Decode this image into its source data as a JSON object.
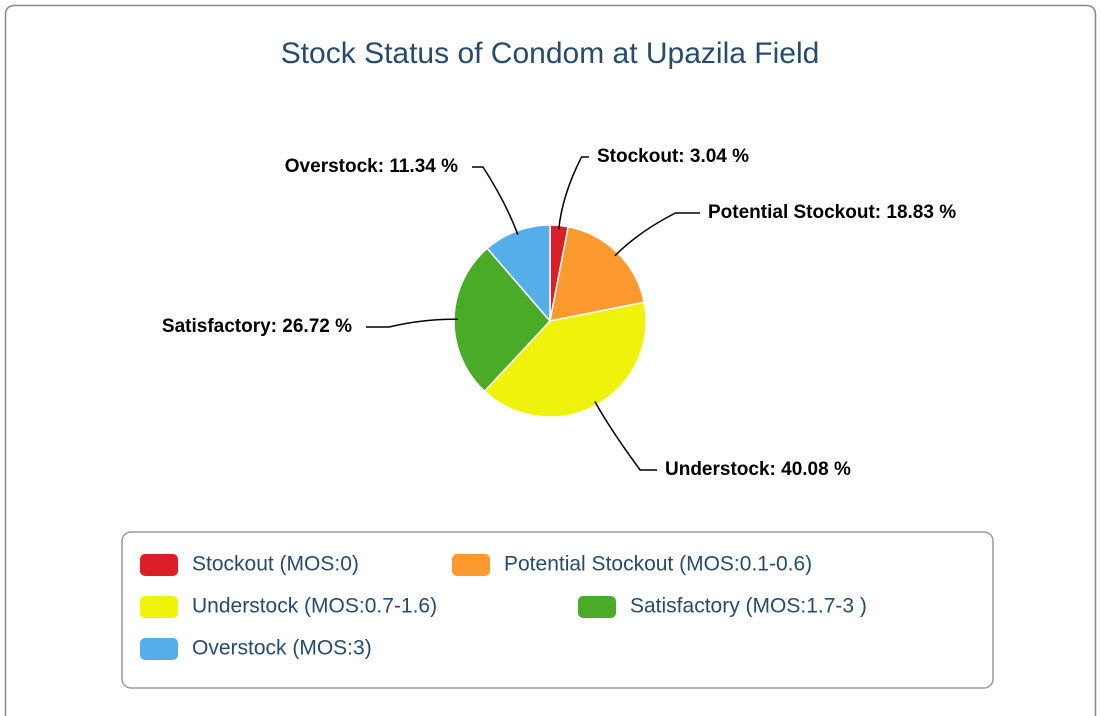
{
  "chart_data": {
    "type": "pie",
    "title": "Stock Status of Condom at Upazila Field",
    "categories": [
      "Stockout (MOS:0)",
      "Potential Stockout (MOS:0.1-0.6)",
      "Understock (MOS:0.7-1.6)",
      "Satisfactory (MOS:1.7-3 )",
      "Overstock (MOS:3)"
    ],
    "values": [
      3.04,
      18.83,
      40.08,
      26.72,
      11.34
    ],
    "value_labels": [
      "Stockout: 3.04 %",
      "Potential Stockout: 18.83 %",
      "Understock: 40.08 %",
      "Satisfactory: 26.72 %",
      "Overstock: 11.34 %"
    ],
    "colors": [
      "#dc1f26",
      "#fd9a2f",
      "#eff20a",
      "#4aab28",
      "#56aee8"
    ],
    "legend": "bottom"
  }
}
